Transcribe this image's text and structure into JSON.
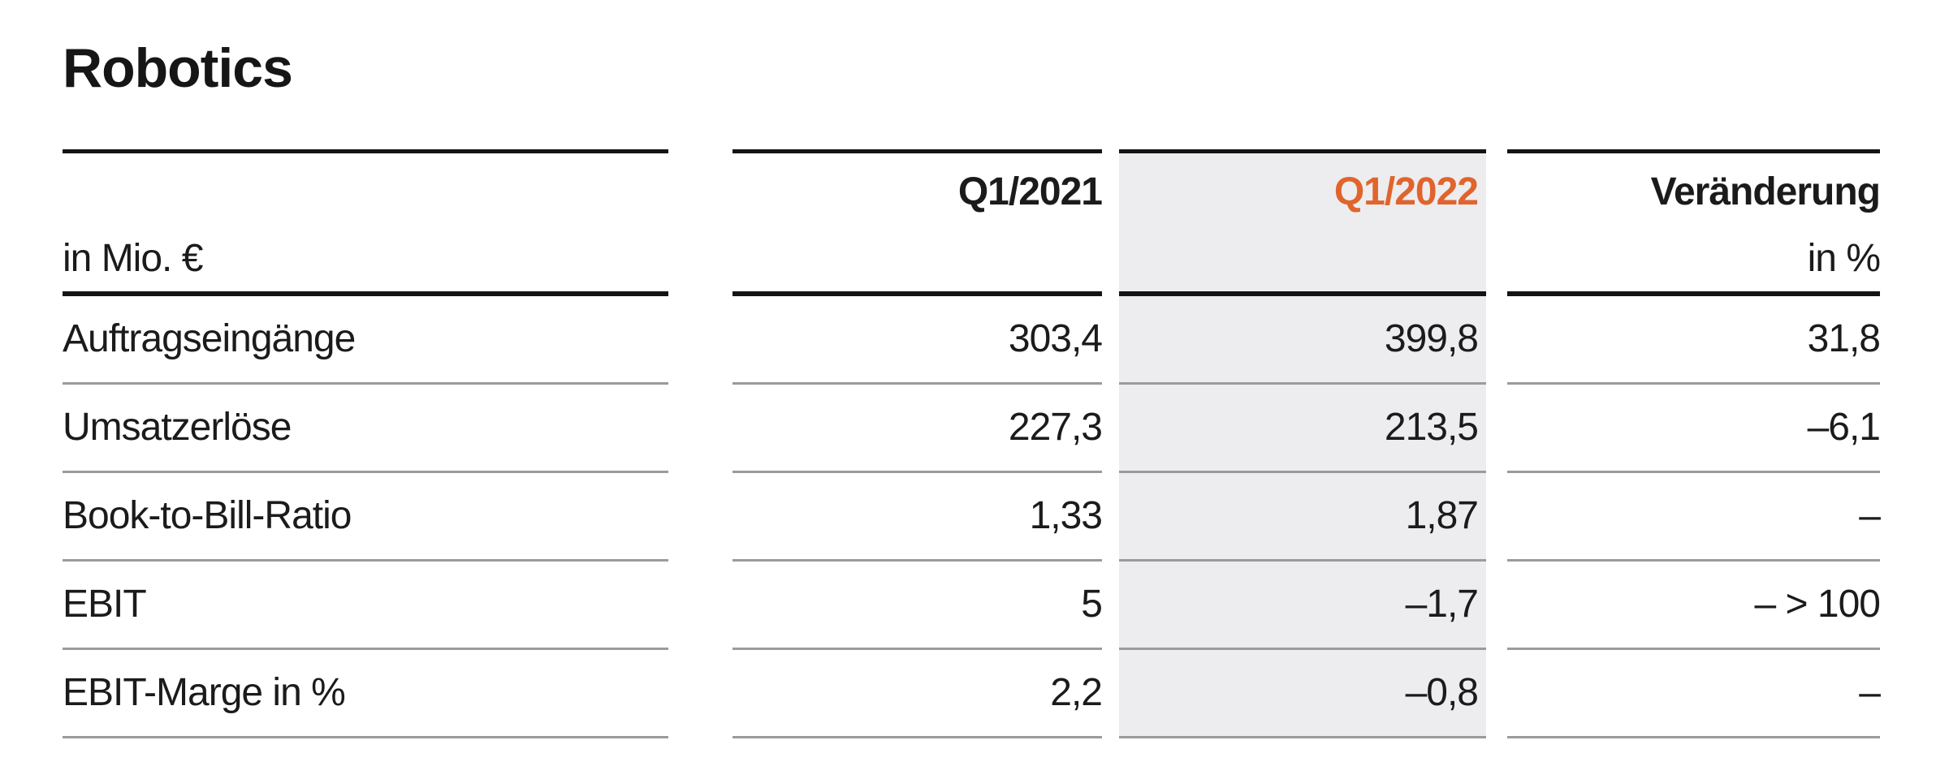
{
  "title": "Robotics",
  "table": {
    "unit_label": "in Mio. €",
    "columns": {
      "period_prev": "Q1/2021",
      "period_current": "Q1/2022",
      "change_line1": "Veränderung",
      "change_line2": "in %"
    },
    "rows": [
      {
        "label": "Auftragseingänge",
        "q1_2021": "303,4",
        "q1_2022": "399,8",
        "change": "31,8"
      },
      {
        "label": "Umsatzerlöse",
        "q1_2021": "227,3",
        "q1_2022": "213,5",
        "change": "–6,1"
      },
      {
        "label": "Book-to-Bill-Ratio",
        "q1_2021": "1,33",
        "q1_2022": "1,87",
        "change": "–"
      },
      {
        "label": "EBIT",
        "q1_2021": "5",
        "q1_2022": "–1,7",
        "change": "– > 100"
      },
      {
        "label": "EBIT-Marge in %",
        "q1_2021": "2,2",
        "q1_2022": "–0,8",
        "change": "–"
      }
    ]
  },
  "chart_data": {
    "type": "table",
    "title": "Robotics",
    "unit": "in Mio. €",
    "columns": [
      "in Mio. €",
      "Q1/2021",
      "Q1/2022",
      "Veränderung in %"
    ],
    "rows": [
      [
        "Auftragseingänge",
        303.4,
        399.8,
        31.8
      ],
      [
        "Umsatzerlöse",
        227.3,
        213.5,
        -6.1
      ],
      [
        "Book-to-Bill-Ratio",
        1.33,
        1.87,
        null
      ],
      [
        "EBIT",
        5,
        -1.7,
        "– > 100"
      ],
      [
        "EBIT-Marge in %",
        2.2,
        -0.8,
        null
      ]
    ],
    "layout": "highlight column Q1/2022 with light gray background, Q1/2022 header in orange"
  },
  "colors": {
    "accent_orange": "#E0642D",
    "highlight_column_bg": "#EDEDEF"
  }
}
